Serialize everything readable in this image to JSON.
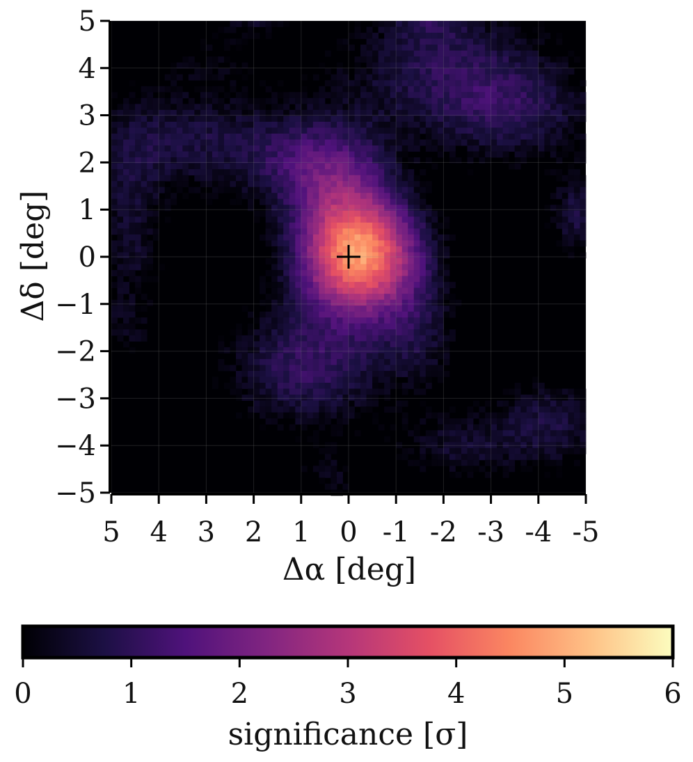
{
  "chart_data": {
    "type": "heatmap",
    "xlabel": "Δα [deg]",
    "ylabel": "Δδ [deg]",
    "xlim": [
      5,
      -5
    ],
    "ylim": [
      -5,
      5
    ],
    "x_ticks": [
      5,
      4,
      3,
      2,
      1,
      0,
      -1,
      -2,
      -3,
      -4,
      -5
    ],
    "x_tick_labels": [
      "5",
      "4",
      "3",
      "2",
      "1",
      "0",
      "-1",
      "-2",
      "-3",
      "-4",
      "-5"
    ],
    "y_ticks": [
      5,
      4,
      3,
      2,
      1,
      0,
      -1,
      -2,
      -3,
      -4,
      -5
    ],
    "y_tick_labels": [
      "5",
      "4",
      "3",
      "2",
      "1",
      "0",
      "−1",
      "−2",
      "−3",
      "−4",
      "−5"
    ],
    "grid": true,
    "marker": {
      "symbol": "+",
      "x": 0,
      "y": 0,
      "color": "#000000"
    },
    "colorbar": {
      "label": "significance [σ]",
      "range": [
        0,
        6
      ],
      "ticks": [
        0,
        1,
        2,
        3,
        4,
        5,
        6
      ],
      "tick_labels": [
        "0",
        "1",
        "2",
        "3",
        "4",
        "5",
        "6"
      ],
      "orientation": "horizontal",
      "placement": "bottom",
      "colormap": "magma",
      "stops": [
        "#000004",
        "#1c1044",
        "#4f127b",
        "#812581",
        "#b5367a",
        "#e55064",
        "#fb8761",
        "#fec287",
        "#fcfdbf"
      ]
    },
    "components": [
      {
        "x": -0.3,
        "y": 0.0,
        "sx": 0.9,
        "sy": 0.85,
        "amp": 4.3
      },
      {
        "x": 0.1,
        "y": 0.9,
        "sx": 0.8,
        "sy": 1.1,
        "amp": 1.6
      },
      {
        "x": 0.8,
        "y": 2.0,
        "sx": 1.0,
        "sy": 0.7,
        "amp": 1.3
      },
      {
        "x": 0.9,
        "y": -2.3,
        "sx": 1.2,
        "sy": 0.9,
        "amp": 1.6
      },
      {
        "x": -1.5,
        "y": -1.7,
        "sx": 0.6,
        "sy": 0.8,
        "amp": 0.9
      },
      {
        "x": 3.5,
        "y": 2.5,
        "sx": 1.6,
        "sy": 0.8,
        "amp": 1.2
      },
      {
        "x": 4.6,
        "y": 0.5,
        "sx": 0.5,
        "sy": 1.2,
        "amp": 1.0
      },
      {
        "x": 4.7,
        "y": -1.5,
        "sx": 0.4,
        "sy": 0.5,
        "amp": 0.6
      },
      {
        "x": -2.0,
        "y": 4.0,
        "sx": 1.6,
        "sy": 0.9,
        "amp": 1.3
      },
      {
        "x": -3.5,
        "y": 3.0,
        "sx": 1.3,
        "sy": 0.8,
        "amp": 1.1
      },
      {
        "x": -4.8,
        "y": 0.9,
        "sx": 0.4,
        "sy": 0.6,
        "amp": 1.2
      },
      {
        "x": -4.2,
        "y": -3.5,
        "sx": 0.9,
        "sy": 0.7,
        "amp": 1.2
      },
      {
        "x": -2.2,
        "y": -4.0,
        "sx": 0.9,
        "sy": 0.5,
        "amp": 0.9
      },
      {
        "x": 0.4,
        "y": -4.6,
        "sx": 0.5,
        "sy": 0.4,
        "amp": 0.7
      },
      {
        "x": 2.0,
        "y": 5.0,
        "sx": 0.5,
        "sy": 0.3,
        "amp": 0.8
      },
      {
        "x": -1.7,
        "y": 5.0,
        "sx": 0.6,
        "sy": 0.3,
        "amp": 0.8
      },
      {
        "x": -4.0,
        "y": -0.8,
        "sx": 0.5,
        "sy": 0.5,
        "amp": 0.4
      },
      {
        "x": 3.0,
        "y": 4.2,
        "sx": 0.8,
        "sy": 0.4,
        "amp": 0.5
      }
    ]
  }
}
